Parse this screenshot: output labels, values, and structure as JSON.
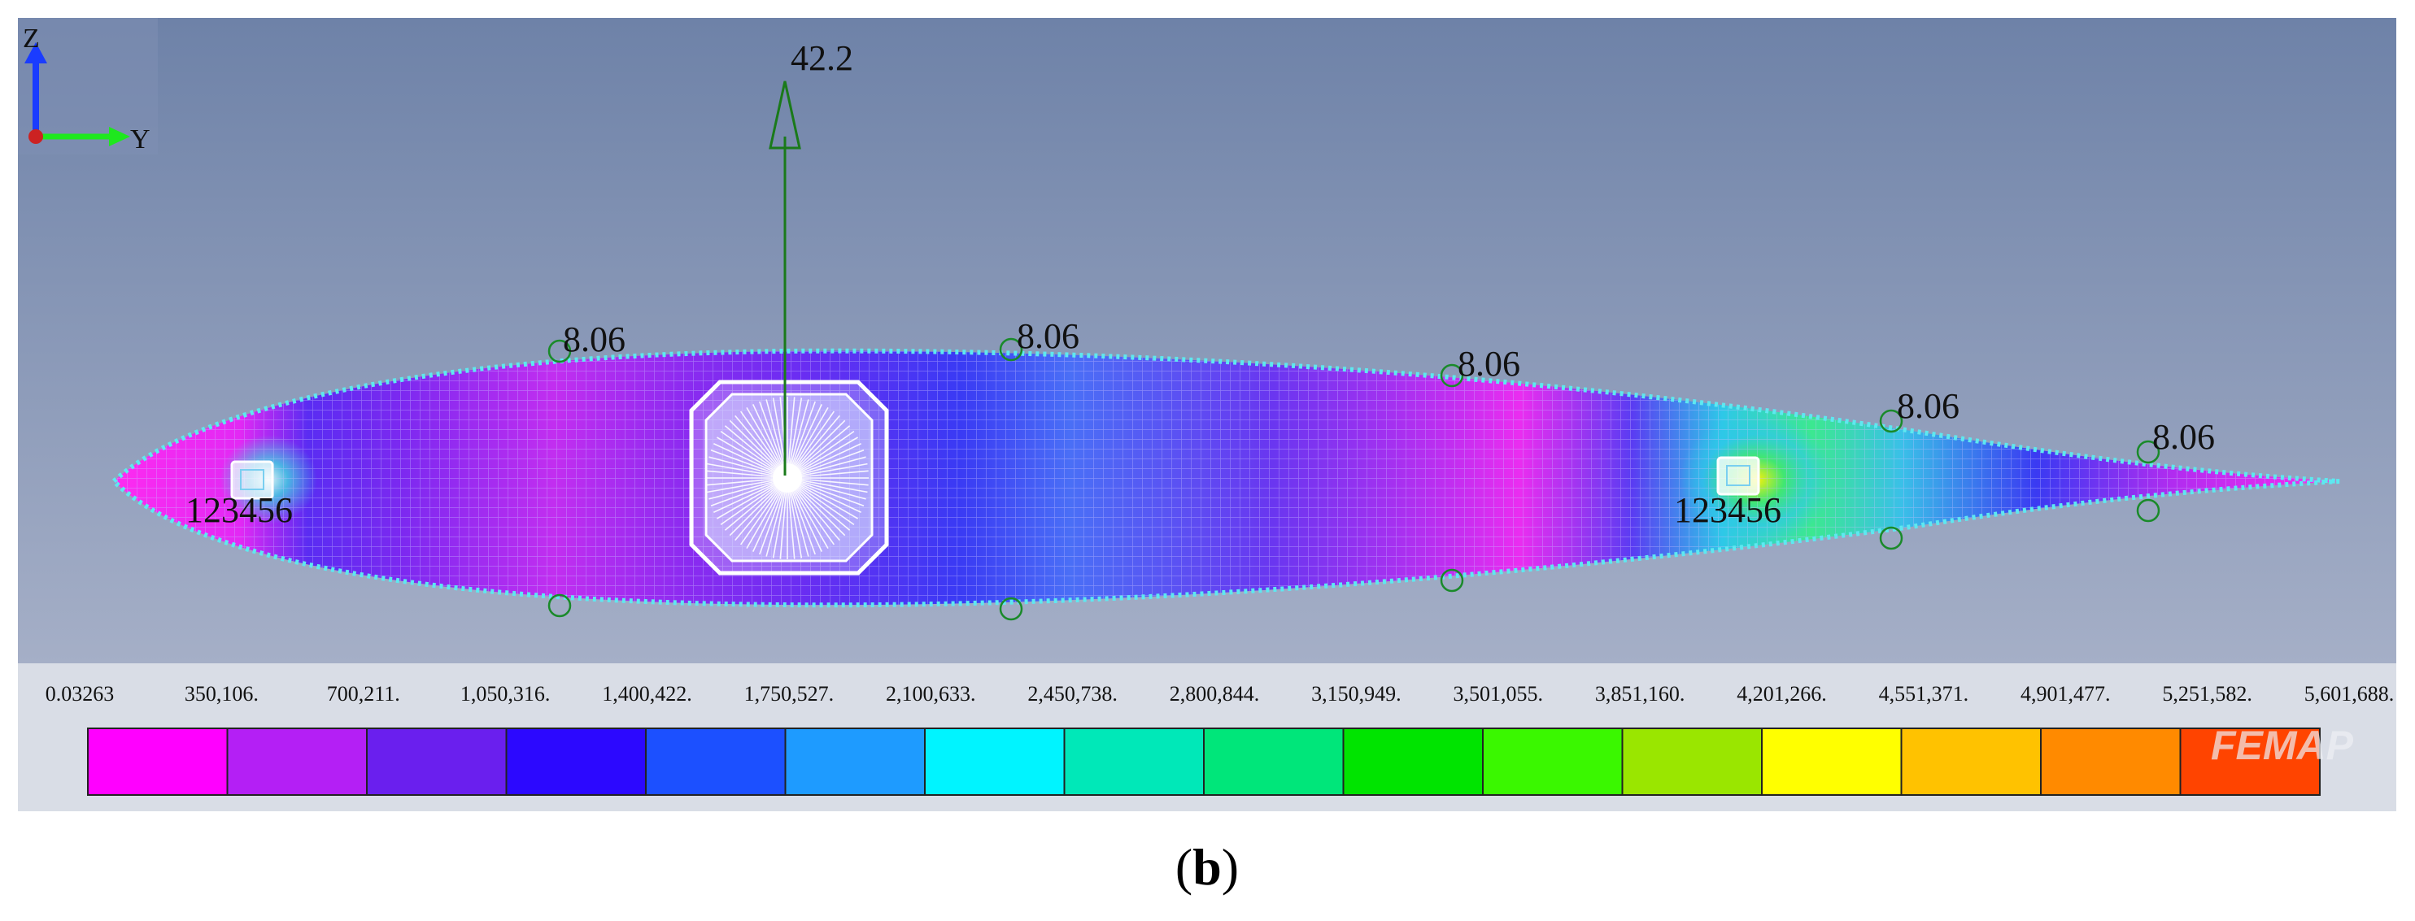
{
  "axis_triad": {
    "z_label": "Z",
    "y_label": "Y"
  },
  "force_label": "42.2",
  "pressure_labels": [
    "8.06",
    "8.06",
    "8.06",
    "8.06",
    "8.06"
  ],
  "constraint_labels": [
    "123456",
    "123456"
  ],
  "colorbar": {
    "ticks": [
      "0.03263",
      "350,106.",
      "700,211.",
      "1,050,316.",
      "1,400,422.",
      "1,750,527.",
      "2,100,633.",
      "2,450,738.",
      "2,800,844.",
      "3,150,949.",
      "3,501,055.",
      "3,851,160.",
      "4,201,266.",
      "4,551,371.",
      "4,901,477.",
      "5,251,582.",
      "5,601,688."
    ],
    "colors": [
      "#ff00ff",
      "#b41ff5",
      "#6a1fee",
      "#2c08ff",
      "#1c50ff",
      "#1e9bff",
      "#00f4ff",
      "#00e8b8",
      "#00e67a",
      "#00e400",
      "#3af800",
      "#9ae600",
      "#ffff00",
      "#ffc200",
      "#ff8a00",
      "#ff4400"
    ]
  },
  "watermark": "FEMAP",
  "caption": {
    "open": "(",
    "letter": "b",
    "close": ")"
  },
  "colors": {
    "viewport_top": "#6e82a8",
    "viewport_bottom": "#a4aec6",
    "force_arrow": "#1a7a1a",
    "mesh_outline": "#5ee8f0"
  }
}
